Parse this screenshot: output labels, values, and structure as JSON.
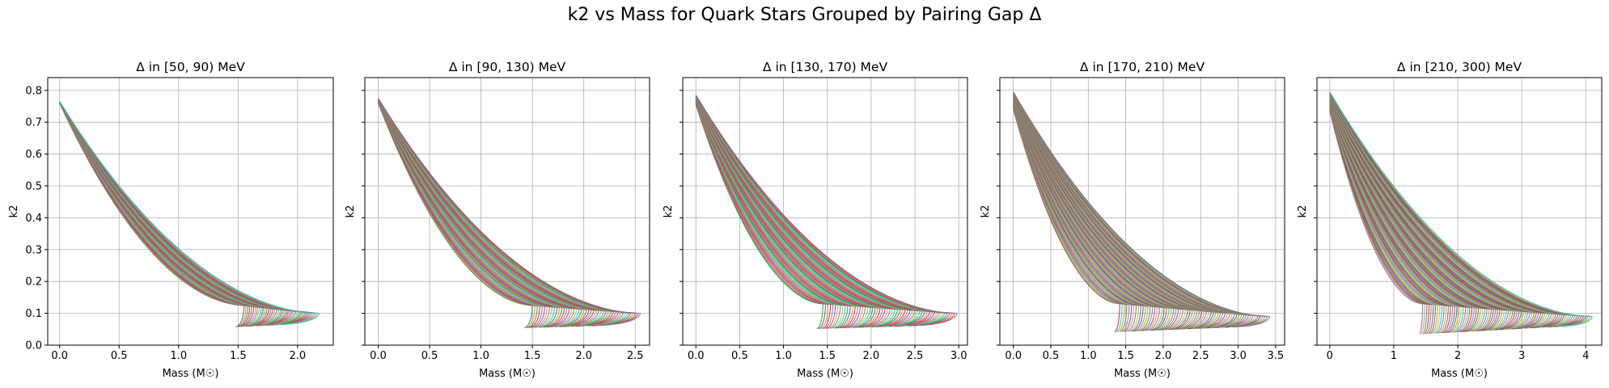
{
  "figure": {
    "suptitle": "k2 vs Mass for Quark Stars Grouped by Pairing Gap Δ"
  },
  "chart_data": [
    {
      "type": "line",
      "title": "Δ in [50, 90) MeV",
      "xlabel": "Mass (M☉)",
      "ylabel": "k2",
      "xlim": [
        -0.1,
        2.3
      ],
      "ylim": [
        0.0,
        0.84
      ],
      "xticks": [
        0.0,
        0.5,
        1.0,
        1.5,
        2.0
      ],
      "xtick_labels": [
        "0.0",
        "0.5",
        "1.0",
        "1.5",
        "2.0"
      ],
      "yticks": [
        0.0,
        0.1,
        0.2,
        0.3,
        0.4,
        0.5,
        0.6,
        0.7,
        0.8
      ],
      "ytick_labels": [
        "0.0",
        "0.1",
        "0.2",
        "0.3",
        "0.4",
        "0.5",
        "0.6",
        "0.7",
        "0.8"
      ],
      "show_ytick_labels": true,
      "grid": true,
      "curve_family": {
        "count": 40,
        "k2_at_zero_mass": [
          0.76,
          0.765
        ],
        "k2_min": [
          0.058,
          0.065
        ],
        "mass_at_k2_min": [
          1.48,
          1.82
        ],
        "max_mass": [
          1.55,
          2.18
        ],
        "k2_at_max_mass": [
          0.125,
          0.1
        ]
      },
      "colors": [
        "#1f77b4",
        "#ff7f0e",
        "#2ca02c",
        "#d62728",
        "#9467bd",
        "#8c564b",
        "#e377c2",
        "#7f7f7f",
        "#bcbd22",
        "#17becf"
      ]
    },
    {
      "type": "line",
      "title": "Δ in [90, 130) MeV",
      "xlabel": "Mass (M☉)",
      "ylabel": "k2",
      "xlim": [
        -0.13,
        2.64
      ],
      "ylim": [
        0.0,
        0.84
      ],
      "xticks": [
        0.0,
        0.5,
        1.0,
        1.5,
        2.0,
        2.5
      ],
      "xtick_labels": [
        "0.0",
        "0.5",
        "1.0",
        "1.5",
        "2.0",
        "2.5"
      ],
      "yticks": [
        0.0,
        0.1,
        0.2,
        0.3,
        0.4,
        0.5,
        0.6,
        0.7,
        0.8
      ],
      "ytick_labels": [
        "0.0",
        "0.1",
        "0.2",
        "0.3",
        "0.4",
        "0.5",
        "0.6",
        "0.7",
        "0.8"
      ],
      "show_ytick_labels": false,
      "grid": true,
      "curve_family": {
        "count": 45,
        "k2_at_zero_mass": [
          0.76,
          0.775
        ],
        "k2_min": [
          0.055,
          0.062
        ],
        "mass_at_k2_min": [
          1.42,
          2.1
        ],
        "max_mass": [
          1.5,
          2.55
        ],
        "k2_at_max_mass": [
          0.125,
          0.1
        ]
      },
      "colors": [
        "#1f77b4",
        "#ff7f0e",
        "#2ca02c",
        "#d62728",
        "#9467bd",
        "#8c564b",
        "#e377c2",
        "#7f7f7f",
        "#bcbd22",
        "#17becf"
      ]
    },
    {
      "type": "line",
      "title": "Δ in [130, 170) MeV",
      "xlabel": "Mass (M☉)",
      "ylabel": "k2",
      "xlim": [
        -0.15,
        3.1
      ],
      "ylim": [
        0.0,
        0.84
      ],
      "xticks": [
        0.0,
        0.5,
        1.0,
        1.5,
        2.0,
        2.5,
        3.0
      ],
      "xtick_labels": [
        "0.0",
        "0.5",
        "1.0",
        "1.5",
        "2.0",
        "2.5",
        "3.0"
      ],
      "yticks": [
        0.0,
        0.1,
        0.2,
        0.3,
        0.4,
        0.5,
        0.6,
        0.7,
        0.8
      ],
      "ytick_labels": [
        "0.0",
        "0.1",
        "0.2",
        "0.3",
        "0.4",
        "0.5",
        "0.6",
        "0.7",
        "0.8"
      ],
      "show_ytick_labels": false,
      "grid": true,
      "curve_family": {
        "count": 55,
        "k2_at_zero_mass": [
          0.755,
          0.785
        ],
        "k2_min": [
          0.052,
          0.062
        ],
        "mass_at_k2_min": [
          1.38,
          2.5
        ],
        "max_mass": [
          1.45,
          2.98
        ],
        "k2_at_max_mass": [
          0.13,
          0.1
        ]
      },
      "colors": [
        "#2ca02c",
        "#1f77b4",
        "#ff7f0e",
        "#d62728",
        "#9467bd",
        "#8c564b",
        "#e377c2",
        "#7f7f7f",
        "#bcbd22",
        "#17becf"
      ]
    },
    {
      "type": "line",
      "title": "Δ in [170, 210) MeV",
      "xlabel": "Mass (M☉)",
      "ylabel": "k2",
      "xlim": [
        -0.18,
        3.62
      ],
      "ylim": [
        0.0,
        0.84
      ],
      "xticks": [
        0.0,
        0.5,
        1.0,
        1.5,
        2.0,
        2.5,
        3.0,
        3.5
      ],
      "xtick_labels": [
        "0.0",
        "0.5",
        "1.0",
        "1.5",
        "2.0",
        "2.5",
        "3.0",
        "3.5"
      ],
      "yticks": [
        0.0,
        0.1,
        0.2,
        0.3,
        0.4,
        0.5,
        0.6,
        0.7,
        0.8
      ],
      "ytick_labels": [
        "0.0",
        "0.1",
        "0.2",
        "0.3",
        "0.4",
        "0.5",
        "0.6",
        "0.7",
        "0.8"
      ],
      "show_ytick_labels": false,
      "grid": true,
      "curve_family": {
        "count": 65,
        "k2_at_zero_mass": [
          0.74,
          0.795
        ],
        "k2_min": [
          0.042,
          0.058
        ],
        "mass_at_k2_min": [
          1.35,
          2.95
        ],
        "max_mass": [
          1.42,
          3.42
        ],
        "k2_at_max_mass": [
          0.13,
          0.09
        ]
      },
      "colors": [
        "#d62728",
        "#17becf",
        "#ff7f0e",
        "#2ca02c",
        "#9467bd",
        "#8c564b",
        "#e377c2",
        "#7f7f7f",
        "#bcbd22",
        "#1f77b4"
      ]
    },
    {
      "type": "line",
      "title": "Δ in [210, 300) MeV",
      "xlabel": "Mass (M☉)",
      "ylabel": "k2",
      "xlim": [
        -0.2,
        4.25
      ],
      "ylim": [
        0.0,
        0.84
      ],
      "xticks": [
        0,
        1,
        2,
        3,
        4
      ],
      "xtick_labels": [
        "0",
        "1",
        "2",
        "3",
        "4"
      ],
      "yticks": [
        0.0,
        0.1,
        0.2,
        0.3,
        0.4,
        0.5,
        0.6,
        0.7,
        0.8
      ],
      "ytick_labels": [
        "0.0",
        "0.1",
        "0.2",
        "0.3",
        "0.4",
        "0.5",
        "0.6",
        "0.7",
        "0.8"
      ],
      "show_ytick_labels": false,
      "grid": true,
      "curve_family": {
        "count": 80,
        "k2_at_zero_mass": [
          0.735,
          0.795
        ],
        "k2_min": [
          0.035,
          0.06
        ],
        "mass_at_k2_min": [
          1.4,
          3.6
        ],
        "max_mass": [
          1.45,
          4.1
        ],
        "k2_at_max_mass": [
          0.13,
          0.09
        ]
      },
      "colors": [
        "#7f7f7f",
        "#e377c2",
        "#2ca02c",
        "#d62728",
        "#9467bd",
        "#8c564b",
        "#1f77b4",
        "#ff7f0e",
        "#bcbd22",
        "#17becf"
      ]
    }
  ]
}
